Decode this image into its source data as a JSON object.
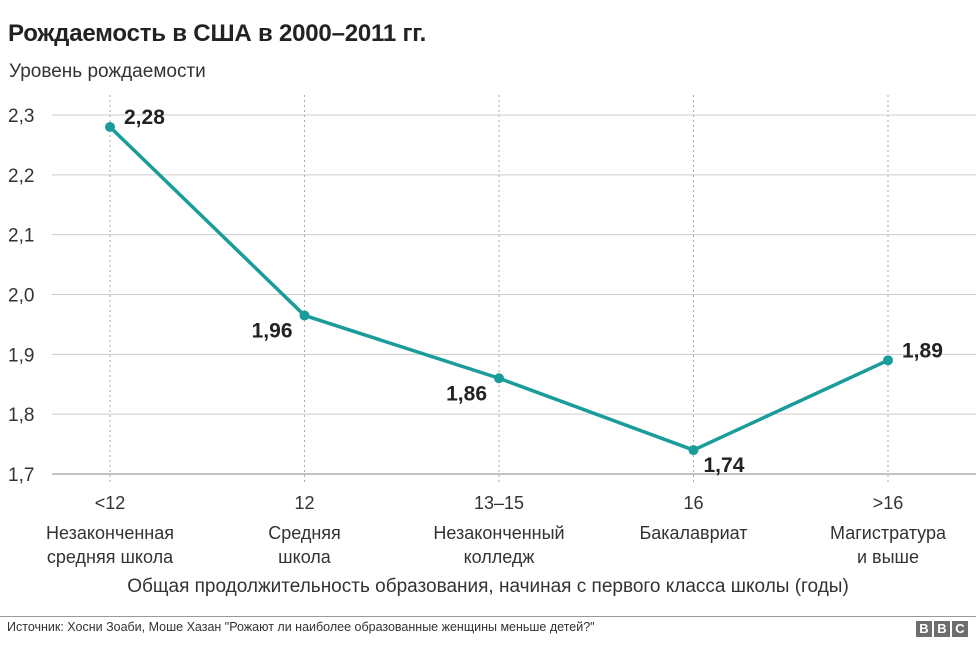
{
  "chart_data": {
    "type": "line",
    "title": "Рождаемость в США в 2000–2011 гг.",
    "ylabel": "Уровень рождаемости",
    "xlabel": "Общая продолжительность образования, начиная с первого класса школы (годы)",
    "categories": [
      {
        "code": "<12",
        "label": [
          "Незаконченная",
          "средняя школа"
        ]
      },
      {
        "code": "12",
        "label": [
          "Средняя",
          "школа"
        ]
      },
      {
        "code": "13–15",
        "label": [
          "Незаконченный",
          "колледж"
        ]
      },
      {
        "code": "16",
        "label": [
          "Бакалавриат"
        ]
      },
      {
        "code": ">16",
        "label": [
          "Магистратура",
          "и выше"
        ]
      }
    ],
    "series": [
      {
        "values": [
          2.28,
          1.965,
          1.86,
          1.74,
          1.89
        ],
        "data_labels": [
          "2,28",
          "1,96",
          "1,86",
          "1,74",
          "1,89"
        ],
        "label_positions": [
          "above-right",
          "below-left",
          "below-left",
          "below-right",
          "above-right"
        ]
      }
    ],
    "ylim": [
      1.7,
      2.3
    ],
    "yticks": [
      {
        "value": 2.3,
        "label": "2,3"
      },
      {
        "value": 2.2,
        "label": "2,2"
      },
      {
        "value": 2.1,
        "label": "2,1"
      },
      {
        "value": 2.0,
        "label": "2,0"
      },
      {
        "value": 1.9,
        "label": "1,9"
      },
      {
        "value": 1.8,
        "label": "1,8"
      },
      {
        "value": 1.7,
        "label": "1,7"
      }
    ],
    "grid": "horizontal solid, vertical dotted at categories",
    "line_color": "#1a9c9a",
    "grid_color": "#cccccc"
  },
  "footer": {
    "source": "Источник: Хосни Зоаби, Моше Хазан \"Рожают ли наиболее образованные женщины меньше детей?\"",
    "logo_letters": [
      "B",
      "B",
      "C"
    ]
  }
}
